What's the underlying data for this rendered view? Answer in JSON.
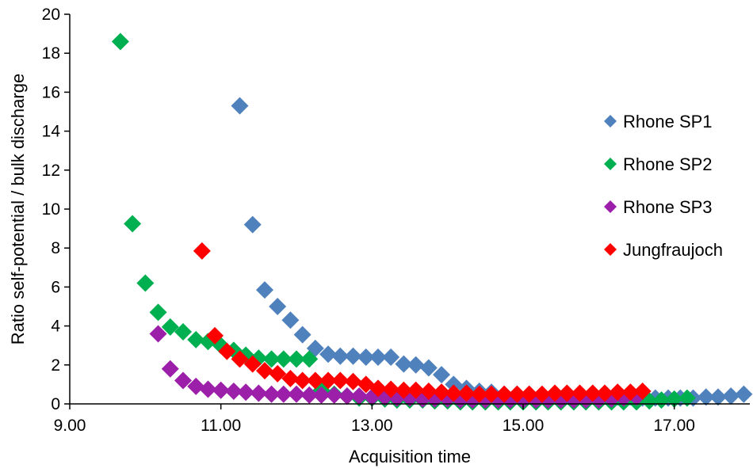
{
  "chart_data": {
    "type": "scatter",
    "xlabel": "Acquisition time",
    "ylabel": "Ratio self-potential / bulk discharge",
    "xlim": [
      9,
      18
    ],
    "ylim": [
      0,
      20
    ],
    "x_ticks": [
      "9.00",
      "11.00",
      "13.00",
      "15.00",
      "17.00"
    ],
    "y_ticks": [
      "0",
      "2",
      "4",
      "6",
      "8",
      "10",
      "12",
      "14",
      "16",
      "18",
      "20"
    ],
    "legend_position": "right",
    "series": [
      {
        "name": "Rhone SP1",
        "color": "#4f81bd",
        "points": [
          [
            11.25,
            15.3
          ],
          [
            11.42,
            9.2
          ],
          [
            11.58,
            5.85
          ],
          [
            11.75,
            5.0
          ],
          [
            11.92,
            4.3
          ],
          [
            12.08,
            3.55
          ],
          [
            12.25,
            2.85
          ],
          [
            12.42,
            2.55
          ],
          [
            12.58,
            2.45
          ],
          [
            12.75,
            2.45
          ],
          [
            12.92,
            2.4
          ],
          [
            13.08,
            2.4
          ],
          [
            13.25,
            2.4
          ],
          [
            13.42,
            2.05
          ],
          [
            13.58,
            2.0
          ],
          [
            13.75,
            1.85
          ],
          [
            13.92,
            1.5
          ],
          [
            14.08,
            1.0
          ],
          [
            14.25,
            0.8
          ],
          [
            14.42,
            0.65
          ],
          [
            14.58,
            0.6
          ],
          [
            14.75,
            0.5
          ],
          [
            14.92,
            0.5
          ],
          [
            15.08,
            0.5
          ],
          [
            15.25,
            0.45
          ],
          [
            15.42,
            0.45
          ],
          [
            15.58,
            0.45
          ],
          [
            15.75,
            0.4
          ],
          [
            15.92,
            0.4
          ],
          [
            16.08,
            0.4
          ],
          [
            16.25,
            0.35
          ],
          [
            16.42,
            0.35
          ],
          [
            16.58,
            0.3
          ],
          [
            16.75,
            0.3
          ],
          [
            16.92,
            0.3
          ],
          [
            17.08,
            0.3
          ],
          [
            17.25,
            0.3
          ],
          [
            17.42,
            0.35
          ],
          [
            17.58,
            0.35
          ],
          [
            17.75,
            0.4
          ],
          [
            17.92,
            0.5
          ]
        ]
      },
      {
        "name": "Rhone SP2",
        "color": "#00b050",
        "points": [
          [
            9.67,
            18.6
          ],
          [
            9.83,
            9.25
          ],
          [
            10.0,
            6.2
          ],
          [
            10.17,
            4.7
          ],
          [
            10.33,
            3.95
          ],
          [
            10.5,
            3.7
          ],
          [
            10.67,
            3.3
          ],
          [
            10.83,
            3.2
          ],
          [
            11.0,
            3.0
          ],
          [
            11.17,
            2.75
          ],
          [
            11.33,
            2.5
          ],
          [
            11.5,
            2.35
          ],
          [
            11.67,
            2.3
          ],
          [
            11.83,
            2.3
          ],
          [
            12.0,
            2.3
          ],
          [
            12.17,
            2.3
          ],
          [
            12.33,
            0.7
          ],
          [
            12.5,
            0.5
          ],
          [
            12.67,
            0.4
          ],
          [
            12.83,
            0.3
          ],
          [
            13.0,
            0.3
          ],
          [
            13.17,
            0.25
          ],
          [
            13.33,
            0.2
          ],
          [
            13.5,
            0.2
          ],
          [
            13.67,
            0.2
          ],
          [
            13.83,
            0.15
          ],
          [
            14.0,
            0.15
          ],
          [
            14.17,
            0.1
          ],
          [
            14.33,
            0.1
          ],
          [
            14.5,
            0.1
          ],
          [
            14.67,
            0.1
          ],
          [
            14.83,
            0.1
          ],
          [
            15.0,
            0.1
          ],
          [
            15.17,
            0.1
          ],
          [
            15.33,
            0.1
          ],
          [
            15.5,
            0.1
          ],
          [
            15.67,
            0.1
          ],
          [
            15.83,
            0.1
          ],
          [
            16.0,
            0.1
          ],
          [
            16.17,
            0.1
          ],
          [
            16.33,
            0.1
          ],
          [
            16.5,
            0.1
          ],
          [
            16.67,
            0.15
          ],
          [
            16.83,
            0.2
          ],
          [
            17.0,
            0.25
          ],
          [
            17.17,
            0.3
          ]
        ]
      },
      {
        "name": "Rhone SP3",
        "color": "#9b1fa8",
        "points": [
          [
            10.17,
            3.6
          ],
          [
            10.33,
            1.8
          ],
          [
            10.5,
            1.2
          ],
          [
            10.67,
            0.9
          ],
          [
            10.83,
            0.75
          ],
          [
            11.0,
            0.7
          ],
          [
            11.17,
            0.65
          ],
          [
            11.33,
            0.6
          ],
          [
            11.5,
            0.55
          ],
          [
            11.67,
            0.5
          ],
          [
            11.83,
            0.5
          ],
          [
            12.0,
            0.5
          ],
          [
            12.17,
            0.45
          ],
          [
            12.33,
            0.45
          ],
          [
            12.5,
            0.45
          ],
          [
            12.67,
            0.4
          ],
          [
            12.83,
            0.4
          ],
          [
            13.0,
            0.35
          ],
          [
            13.17,
            0.35
          ],
          [
            13.33,
            0.3
          ],
          [
            13.5,
            0.3
          ],
          [
            13.67,
            0.25
          ],
          [
            13.83,
            0.25
          ],
          [
            14.0,
            0.25
          ],
          [
            14.17,
            0.2
          ],
          [
            14.33,
            0.2
          ],
          [
            14.5,
            0.2
          ],
          [
            14.67,
            0.2
          ],
          [
            14.83,
            0.2
          ],
          [
            15.0,
            0.2
          ],
          [
            15.17,
            0.2
          ],
          [
            15.33,
            0.2
          ],
          [
            15.5,
            0.2
          ],
          [
            15.67,
            0.2
          ],
          [
            15.83,
            0.2
          ],
          [
            16.0,
            0.2
          ],
          [
            16.17,
            0.25
          ],
          [
            16.33,
            0.3
          ],
          [
            16.5,
            0.35
          ]
        ]
      },
      {
        "name": "Jungfraujoch",
        "color": "#ff0000",
        "points": [
          [
            10.75,
            7.85
          ],
          [
            10.92,
            3.5
          ],
          [
            11.08,
            2.7
          ],
          [
            11.25,
            2.3
          ],
          [
            11.42,
            2.05
          ],
          [
            11.58,
            1.7
          ],
          [
            11.75,
            1.55
          ],
          [
            11.92,
            1.3
          ],
          [
            12.08,
            1.2
          ],
          [
            12.25,
            1.2
          ],
          [
            12.42,
            1.2
          ],
          [
            12.58,
            1.2
          ],
          [
            12.75,
            1.15
          ],
          [
            12.92,
            1.0
          ],
          [
            13.08,
            0.8
          ],
          [
            13.25,
            0.75
          ],
          [
            13.42,
            0.7
          ],
          [
            13.58,
            0.7
          ],
          [
            13.75,
            0.65
          ],
          [
            13.92,
            0.6
          ],
          [
            14.08,
            0.55
          ],
          [
            14.25,
            0.55
          ],
          [
            14.42,
            0.5
          ],
          [
            14.58,
            0.5
          ],
          [
            14.75,
            0.5
          ],
          [
            14.92,
            0.5
          ],
          [
            15.08,
            0.5
          ],
          [
            15.25,
            0.5
          ],
          [
            15.42,
            0.55
          ],
          [
            15.58,
            0.55
          ],
          [
            15.75,
            0.55
          ],
          [
            15.92,
            0.55
          ],
          [
            16.08,
            0.55
          ],
          [
            16.25,
            0.6
          ],
          [
            16.42,
            0.6
          ],
          [
            16.58,
            0.65
          ]
        ]
      }
    ]
  }
}
